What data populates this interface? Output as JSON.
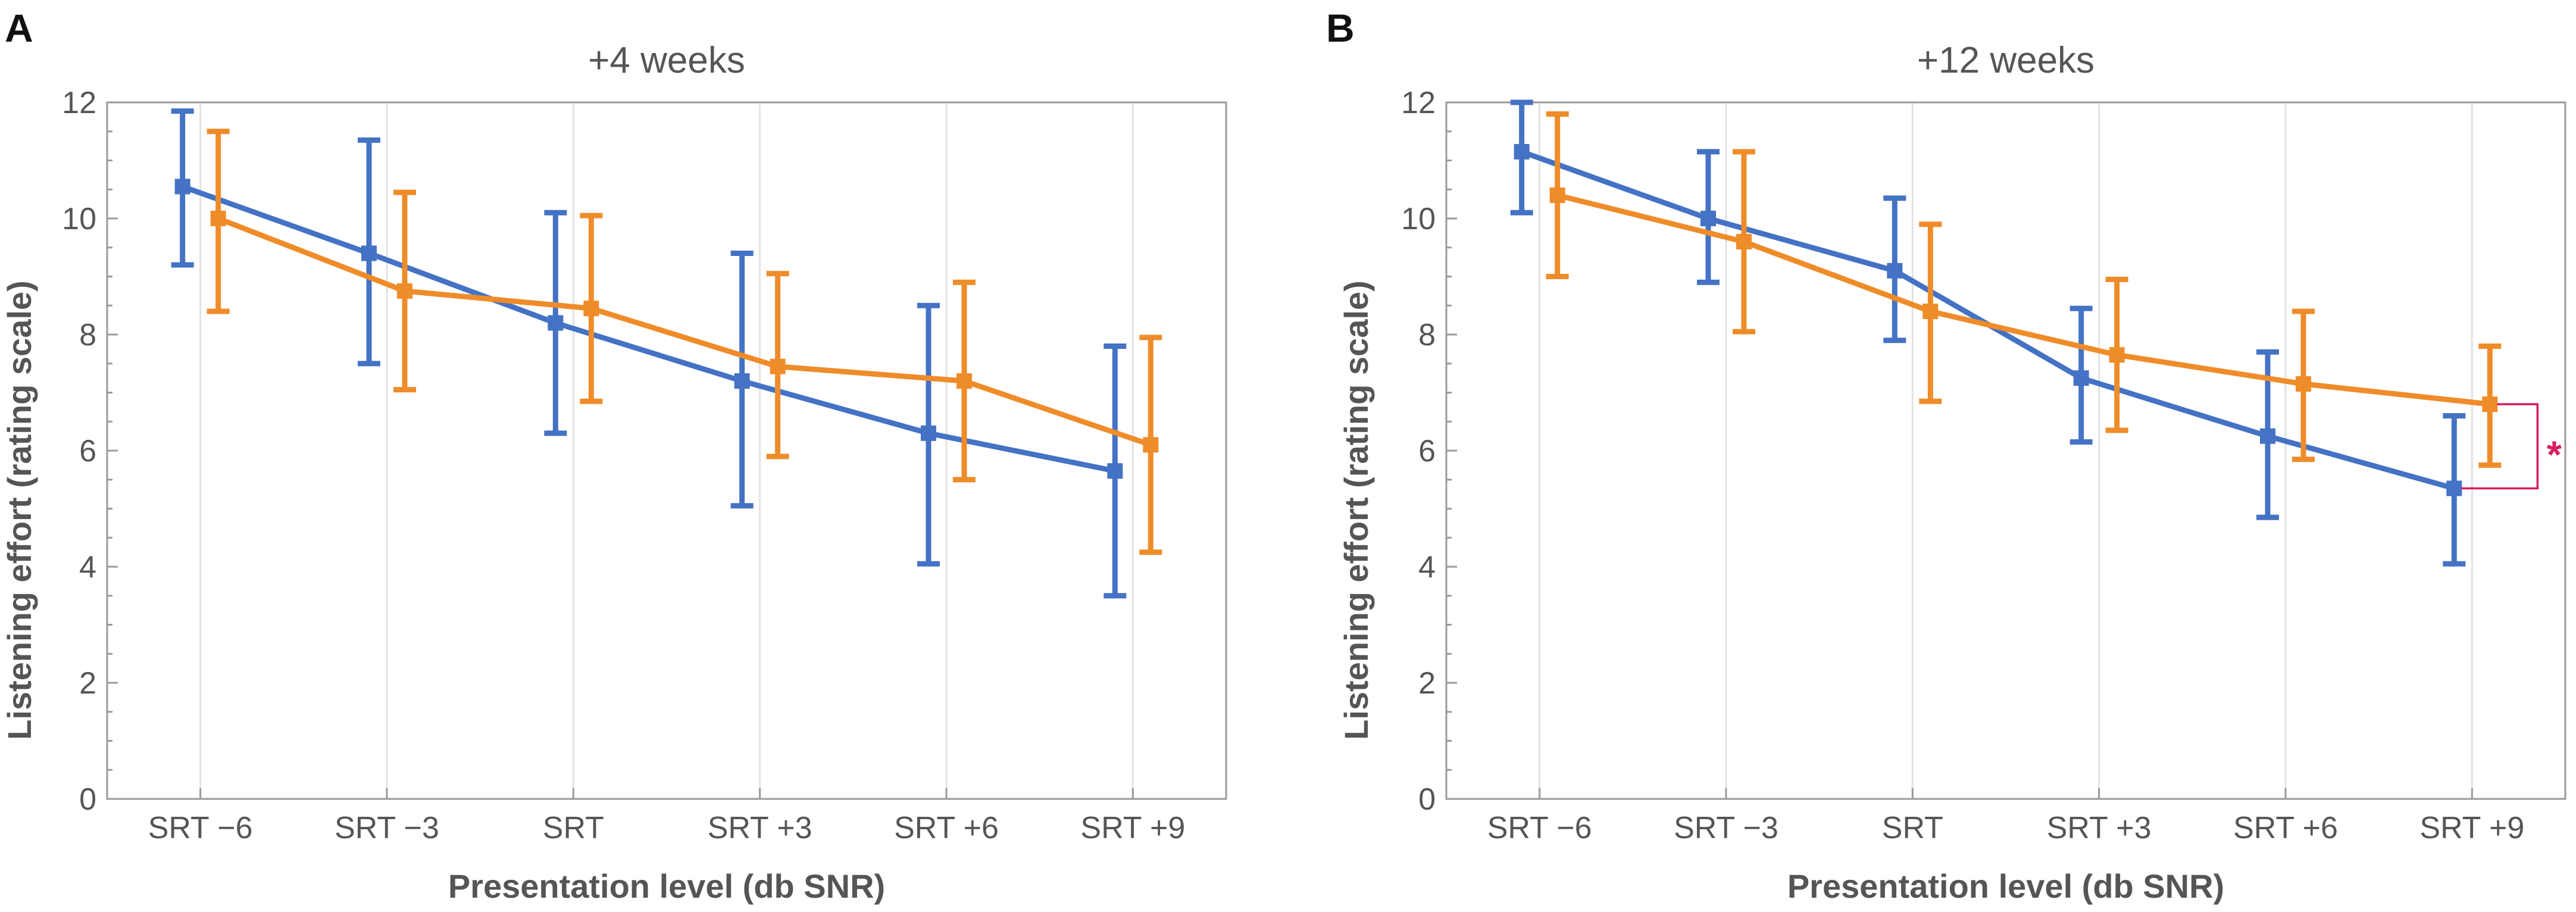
{
  "chart_data": [
    {
      "type": "line",
      "panel": "A",
      "title": "+4 weeks",
      "xlabel": "Presentation level (db SNR)",
      "ylabel": "Listening effort (rating scale)",
      "categories": [
        "SRT −6",
        "SRT −3",
        "SRT",
        "SRT +3",
        "SRT +6",
        "SRT +9"
      ],
      "ylim": [
        0,
        12
      ],
      "yticks": [
        0,
        2,
        4,
        6,
        8,
        10,
        12
      ],
      "grid": "vertical",
      "legend": "none",
      "series": [
        {
          "name": "blue group",
          "color": "#4472c4",
          "values": [
            10.55,
            9.4,
            8.2,
            7.2,
            6.3,
            5.65
          ],
          "lower": [
            9.2,
            7.5,
            6.3,
            5.05,
            4.05,
            3.5
          ],
          "upper": [
            11.85,
            11.35,
            10.1,
            9.4,
            8.5,
            7.8
          ]
        },
        {
          "name": "orange group",
          "color": "#ef8c2a",
          "values": [
            10.0,
            8.75,
            8.45,
            7.45,
            7.2,
            6.1
          ],
          "lower": [
            8.4,
            7.05,
            6.85,
            5.9,
            5.5,
            4.25
          ],
          "upper": [
            11.5,
            10.45,
            10.05,
            9.05,
            8.9,
            7.95
          ]
        }
      ],
      "annotations": []
    },
    {
      "type": "line",
      "panel": "B",
      "title": "+12 weeks",
      "xlabel": "Presentation level (db SNR)",
      "ylabel": "Listening effort (rating scale)",
      "categories": [
        "SRT −6",
        "SRT −3",
        "SRT",
        "SRT +3",
        "SRT +6",
        "SRT +9"
      ],
      "ylim": [
        0,
        12
      ],
      "yticks": [
        0,
        2,
        4,
        6,
        8,
        10,
        12
      ],
      "grid": "vertical",
      "legend": "none",
      "series": [
        {
          "name": "blue group",
          "color": "#4472c4",
          "values": [
            11.15,
            10.0,
            9.1,
            7.25,
            6.25,
            5.35
          ],
          "lower": [
            10.1,
            8.9,
            7.9,
            6.15,
            4.85,
            4.05
          ],
          "upper": [
            12.0,
            11.15,
            10.35,
            8.45,
            7.7,
            6.6
          ]
        },
        {
          "name": "orange group",
          "color": "#ef8c2a",
          "values": [
            10.4,
            9.6,
            8.4,
            7.65,
            7.15,
            6.8
          ],
          "lower": [
            9.0,
            8.05,
            6.85,
            6.35,
            5.85,
            5.75
          ],
          "upper": [
            11.8,
            11.15,
            9.9,
            8.95,
            8.4,
            7.8
          ]
        }
      ],
      "annotations": [
        {
          "text": "*",
          "category": "SRT +9",
          "between": [
            5.35,
            6.8
          ],
          "color": "#d81b60"
        }
      ]
    }
  ]
}
